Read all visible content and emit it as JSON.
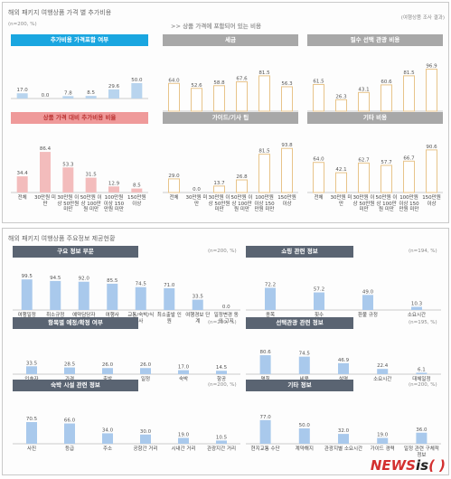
{
  "panel1": {
    "title": "해외 패키지 여행상품 가격 별 추가비용",
    "n": "(n=200, %)",
    "source": "(여행상품 조사 결과)",
    "included_banner": ">> 상품 가격에 포함되어 있는 비용",
    "x_categories": [
      "전체",
      "30만원 미만",
      "30만원 이상 50만원 미만",
      "50만원 이상 100만원 미만",
      "100만원 이상 150만원 미만",
      "150만원 이상"
    ]
  },
  "panel2": {
    "title": "해외 패키지 여행상품 주요정보 제공현황"
  },
  "logo": {
    "text1": "NEWS",
    "text2": "is",
    "text3": "( )"
  },
  "chart_data": [
    {
      "type": "bar",
      "title": "추가비용 가격포함 여부",
      "categories": [
        "전체",
        "30만원 미만",
        "30만원 이상 50만원 미만",
        "50만원 이상 100만원 미만",
        "100만원 이상 150만원 미만",
        "150만원 이상"
      ],
      "values": [
        17.0,
        0.0,
        7.8,
        8.5,
        29.6,
        50.0
      ],
      "color": "#b8d4ee"
    },
    {
      "type": "bar",
      "title": "상품 가격 대비 추가비용 비율",
      "categories": [
        "전체",
        "30만원 미만",
        "30만원 이상 50만원 미만",
        "50만원 이상 100만원 미만",
        "100만원 이상 150만원 미만",
        "150만원 이상"
      ],
      "values": [
        34.4,
        86.4,
        53.3,
        31.5,
        12.9,
        8.5
      ],
      "color": "#f3bcbc"
    },
    {
      "type": "bar",
      "title": "세금",
      "categories": [
        "전체",
        "30만원 미만",
        "30만원 이상 50만원 미만",
        "50만원 이상 100만원 미만",
        "100만원 이상 150만원 미만",
        "150만원 이상"
      ],
      "values": [
        64.0,
        52.6,
        58.8,
        67.6,
        81.5,
        56.3
      ],
      "color": "#ffffff",
      "stroke": "#e8c48a"
    },
    {
      "type": "bar",
      "title": "필수 선택 관광 비용",
      "categories": [
        "전체",
        "30만원 미만",
        "30만원 이상 50만원 미만",
        "50만원 이상 100만원 미만",
        "100만원 이상 150만원 미만",
        "150만원 이상"
      ],
      "values": [
        61.5,
        26.3,
        43.1,
        60.6,
        81.5,
        96.9
      ],
      "color": "#ffffff",
      "stroke": "#e8c48a"
    },
    {
      "type": "bar",
      "title": "가이드/기사 팁",
      "categories": [
        "전체",
        "30만원 미만",
        "30만원 이상 50만원 미만",
        "50만원 이상 100만원 미만",
        "100만원 이상 150만원 미만",
        "150만원 이상"
      ],
      "values": [
        29.0,
        0.0,
        13.7,
        26.8,
        81.5,
        93.8
      ],
      "color": "#ffffff",
      "stroke": "#e8c48a"
    },
    {
      "type": "bar",
      "title": "기타 비용",
      "categories": [
        "전체",
        "30만원 미만",
        "30만원 이상 50만원 미만",
        "50만원 이상 100만원 미만",
        "100만원 이상 150만원 미만",
        "150만원 이상"
      ],
      "values": [
        64.0,
        42.1,
        62.7,
        57.7,
        66.7,
        90.6
      ],
      "color": "#ffffff",
      "stroke": "#e8c48a"
    },
    {
      "type": "bar",
      "title": "구요 정보 부문",
      "n": "(n=200, %)",
      "categories": [
        "여행일정",
        "취소규정",
        "예약담당자 연락처",
        "여행사",
        "교통/숙박/식사",
        "최소출발 인원",
        "여행경보 단계",
        "일정변경 동의 고지"
      ],
      "values": [
        99.5,
        94.5,
        92.0,
        85.5,
        74.5,
        71.0,
        33.5,
        0.0
      ],
      "color": "#a9c9ec"
    },
    {
      "type": "bar",
      "title": "쇼핑 관련 정보",
      "n": "(n=194, %)",
      "categories": [
        "종목",
        "횟수",
        "환불 규정",
        "소요시간"
      ],
      "values": [
        72.2,
        57.2,
        49.0,
        10.3
      ],
      "color": "#a9c9ec"
    },
    {
      "type": "bar",
      "title": "항목별 예정/확정 여부",
      "n": "(n=200, %)",
      "categories": [
        "인솔자",
        "가격",
        "출발",
        "일정",
        "숙박",
        "항공"
      ],
      "values": [
        33.5,
        28.5,
        26.0,
        26.0,
        17.0,
        14.5
      ],
      "color": "#a9c9ec"
    },
    {
      "type": "bar",
      "title": "선택관광 관련 정보",
      "n": "(n=195, %)",
      "categories": [
        "명칭",
        "비용",
        "설명",
        "소요시간",
        "대체일정"
      ],
      "values": [
        80.6,
        74.5,
        46.9,
        22.4,
        6.1
      ],
      "color": "#a9c9ec"
    },
    {
      "type": "bar",
      "title": "숙박 시설 관련 정보",
      "n": "(n=200, %)",
      "categories": [
        "사진",
        "등급",
        "주소",
        "공항간 거리",
        "시내간 거리",
        "관광지간 거리"
      ],
      "values": [
        70.5,
        66.0,
        34.0,
        30.0,
        19.0,
        10.5
      ],
      "color": "#a9c9ec"
    },
    {
      "type": "bar",
      "title": "기타 정보",
      "n": "(n=200, %)",
      "categories": [
        "현지교통 수단",
        "계약해지",
        "관광지별 소요시간",
        "가이드 경력",
        "일정 관련 구체적 정보"
      ],
      "values": [
        77.0,
        50.0,
        32.0,
        19.0,
        36.0
      ],
      "color": "#a9c9ec"
    }
  ]
}
